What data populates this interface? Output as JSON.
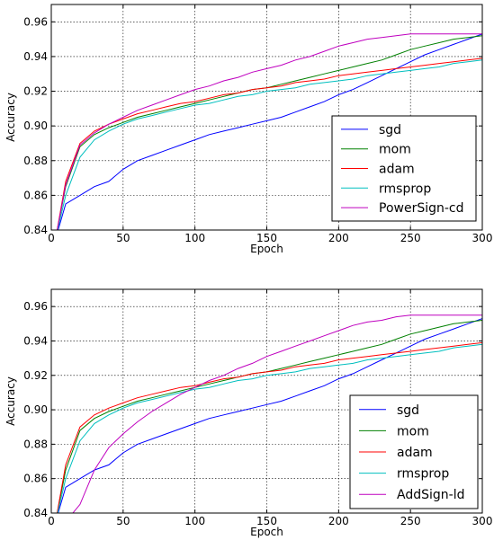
{
  "chart_data": [
    {
      "type": "line",
      "title": "",
      "xlabel": "Epoch",
      "ylabel": "Accuracy",
      "xlim": [
        0,
        300
      ],
      "ylim": [
        0.84,
        0.97
      ],
      "xticks": [
        0,
        50,
        100,
        150,
        200,
        250,
        300
      ],
      "xtick_labels": [
        "0",
        "50",
        "100",
        "150",
        "200",
        "250",
        "300"
      ],
      "yticks": [
        0.84,
        0.86,
        0.88,
        0.9,
        0.92,
        0.94,
        0.96
      ],
      "ytick_labels": [
        "0.84",
        "0.86",
        "0.88",
        "0.90",
        "0.92",
        "0.94",
        "0.96"
      ],
      "grid": true,
      "legend_position": "lower-right",
      "series": [
        {
          "name": "sgd",
          "color": "#0000ff",
          "x": [
            3,
            10,
            20,
            30,
            40,
            50,
            60,
            70,
            80,
            90,
            100,
            110,
            120,
            130,
            140,
            150,
            160,
            170,
            180,
            190,
            200,
            210,
            220,
            230,
            240,
            250,
            260,
            270,
            280,
            290,
            300
          ],
          "y": [
            0.835,
            0.855,
            0.86,
            0.865,
            0.868,
            0.875,
            0.88,
            0.883,
            0.886,
            0.889,
            0.892,
            0.895,
            0.897,
            0.899,
            0.901,
            0.903,
            0.905,
            0.908,
            0.911,
            0.914,
            0.918,
            0.921,
            0.925,
            0.929,
            0.933,
            0.937,
            0.941,
            0.944,
            0.947,
            0.95,
            0.953
          ]
        },
        {
          "name": "mom",
          "color": "#008000",
          "x": [
            3,
            10,
            20,
            30,
            40,
            50,
            60,
            70,
            80,
            90,
            100,
            110,
            120,
            130,
            140,
            150,
            160,
            170,
            180,
            190,
            200,
            210,
            220,
            230,
            240,
            250,
            260,
            270,
            280,
            290,
            300
          ],
          "y": [
            0.835,
            0.865,
            0.888,
            0.895,
            0.899,
            0.902,
            0.905,
            0.907,
            0.909,
            0.911,
            0.913,
            0.915,
            0.917,
            0.919,
            0.921,
            0.922,
            0.924,
            0.926,
            0.928,
            0.93,
            0.932,
            0.934,
            0.936,
            0.938,
            0.941,
            0.944,
            0.946,
            0.948,
            0.95,
            0.951,
            0.952
          ]
        },
        {
          "name": "adam",
          "color": "#ff0000",
          "x": [
            3,
            10,
            20,
            30,
            40,
            50,
            60,
            70,
            80,
            90,
            100,
            110,
            120,
            130,
            140,
            150,
            160,
            170,
            180,
            190,
            200,
            210,
            220,
            230,
            240,
            250,
            260,
            270,
            280,
            290,
            300
          ],
          "y": [
            0.835,
            0.868,
            0.89,
            0.897,
            0.901,
            0.904,
            0.907,
            0.909,
            0.911,
            0.913,
            0.914,
            0.916,
            0.918,
            0.919,
            0.921,
            0.922,
            0.923,
            0.925,
            0.926,
            0.927,
            0.929,
            0.93,
            0.931,
            0.932,
            0.933,
            0.934,
            0.935,
            0.936,
            0.937,
            0.938,
            0.939
          ]
        },
        {
          "name": "rmsprop",
          "color": "#00bfbf",
          "x": [
            3,
            10,
            20,
            30,
            40,
            50,
            60,
            70,
            80,
            90,
            100,
            110,
            120,
            130,
            140,
            150,
            160,
            170,
            180,
            190,
            200,
            210,
            220,
            230,
            240,
            250,
            260,
            270,
            280,
            290,
            300
          ],
          "y": [
            0.835,
            0.86,
            0.882,
            0.892,
            0.897,
            0.901,
            0.904,
            0.906,
            0.908,
            0.91,
            0.912,
            0.913,
            0.915,
            0.917,
            0.918,
            0.92,
            0.921,
            0.922,
            0.924,
            0.925,
            0.926,
            0.927,
            0.929,
            0.93,
            0.931,
            0.932,
            0.933,
            0.934,
            0.936,
            0.937,
            0.938
          ]
        },
        {
          "name": "PowerSign-cd",
          "color": "#bf00bf",
          "x": [
            3,
            10,
            20,
            30,
            40,
            50,
            60,
            70,
            80,
            90,
            100,
            110,
            120,
            130,
            140,
            150,
            160,
            170,
            180,
            190,
            200,
            210,
            220,
            230,
            240,
            250,
            260,
            270,
            280,
            290,
            300
          ],
          "y": [
            0.835,
            0.866,
            0.889,
            0.896,
            0.901,
            0.905,
            0.909,
            0.912,
            0.915,
            0.918,
            0.921,
            0.923,
            0.926,
            0.928,
            0.931,
            0.933,
            0.935,
            0.938,
            0.94,
            0.943,
            0.946,
            0.948,
            0.95,
            0.951,
            0.952,
            0.953,
            0.953,
            0.953,
            0.953,
            0.953,
            0.953
          ]
        }
      ]
    },
    {
      "type": "line",
      "title": "",
      "xlabel": "Epoch",
      "ylabel": "Accuracy",
      "xlim": [
        0,
        300
      ],
      "ylim": [
        0.84,
        0.97
      ],
      "xticks": [
        0,
        50,
        100,
        150,
        200,
        250,
        300
      ],
      "xtick_labels": [
        "0",
        "50",
        "100",
        "150",
        "200",
        "250",
        "300"
      ],
      "yticks": [
        0.84,
        0.86,
        0.88,
        0.9,
        0.92,
        0.94,
        0.96
      ],
      "ytick_labels": [
        "0.84",
        "0.86",
        "0.88",
        "0.90",
        "0.92",
        "0.94",
        "0.96"
      ],
      "grid": true,
      "legend_position": "lower-right",
      "series": [
        {
          "name": "sgd",
          "color": "#0000ff",
          "x": [
            3,
            10,
            20,
            30,
            40,
            50,
            60,
            70,
            80,
            90,
            100,
            110,
            120,
            130,
            140,
            150,
            160,
            170,
            180,
            190,
            200,
            210,
            220,
            230,
            240,
            250,
            260,
            270,
            280,
            290,
            300
          ],
          "y": [
            0.835,
            0.855,
            0.86,
            0.865,
            0.868,
            0.875,
            0.88,
            0.883,
            0.886,
            0.889,
            0.892,
            0.895,
            0.897,
            0.899,
            0.901,
            0.903,
            0.905,
            0.908,
            0.911,
            0.914,
            0.918,
            0.921,
            0.925,
            0.929,
            0.933,
            0.937,
            0.941,
            0.944,
            0.947,
            0.95,
            0.953
          ]
        },
        {
          "name": "mom",
          "color": "#008000",
          "x": [
            3,
            10,
            20,
            30,
            40,
            50,
            60,
            70,
            80,
            90,
            100,
            110,
            120,
            130,
            140,
            150,
            160,
            170,
            180,
            190,
            200,
            210,
            220,
            230,
            240,
            250,
            260,
            270,
            280,
            290,
            300
          ],
          "y": [
            0.835,
            0.865,
            0.888,
            0.895,
            0.899,
            0.902,
            0.905,
            0.907,
            0.909,
            0.911,
            0.913,
            0.915,
            0.917,
            0.919,
            0.921,
            0.922,
            0.924,
            0.926,
            0.928,
            0.93,
            0.932,
            0.934,
            0.936,
            0.938,
            0.941,
            0.944,
            0.946,
            0.948,
            0.95,
            0.951,
            0.952
          ]
        },
        {
          "name": "adam",
          "color": "#ff0000",
          "x": [
            3,
            10,
            20,
            30,
            40,
            50,
            60,
            70,
            80,
            90,
            100,
            110,
            120,
            130,
            140,
            150,
            160,
            170,
            180,
            190,
            200,
            210,
            220,
            230,
            240,
            250,
            260,
            270,
            280,
            290,
            300
          ],
          "y": [
            0.835,
            0.868,
            0.89,
            0.897,
            0.901,
            0.904,
            0.907,
            0.909,
            0.911,
            0.913,
            0.914,
            0.916,
            0.918,
            0.919,
            0.921,
            0.922,
            0.923,
            0.925,
            0.926,
            0.927,
            0.929,
            0.93,
            0.931,
            0.932,
            0.933,
            0.934,
            0.935,
            0.936,
            0.937,
            0.938,
            0.939
          ]
        },
        {
          "name": "rmsprop",
          "color": "#00bfbf",
          "x": [
            3,
            10,
            20,
            30,
            40,
            50,
            60,
            70,
            80,
            90,
            100,
            110,
            120,
            130,
            140,
            150,
            160,
            170,
            180,
            190,
            200,
            210,
            220,
            230,
            240,
            250,
            260,
            270,
            280,
            290,
            300
          ],
          "y": [
            0.835,
            0.86,
            0.882,
            0.892,
            0.897,
            0.901,
            0.904,
            0.906,
            0.908,
            0.91,
            0.912,
            0.913,
            0.915,
            0.917,
            0.918,
            0.92,
            0.921,
            0.922,
            0.924,
            0.925,
            0.926,
            0.927,
            0.929,
            0.93,
            0.931,
            0.932,
            0.933,
            0.934,
            0.936,
            0.937,
            0.938
          ]
        },
        {
          "name": "AddSign-ld",
          "color": "#bf00bf",
          "x": [
            3,
            10,
            20,
            30,
            40,
            50,
            60,
            70,
            80,
            90,
            100,
            110,
            120,
            130,
            140,
            150,
            160,
            170,
            180,
            190,
            200,
            210,
            220,
            230,
            240,
            250,
            260,
            270,
            280,
            290,
            300
          ],
          "y": [
            0.83,
            0.835,
            0.845,
            0.865,
            0.878,
            0.886,
            0.893,
            0.899,
            0.904,
            0.909,
            0.913,
            0.917,
            0.92,
            0.924,
            0.927,
            0.931,
            0.934,
            0.937,
            0.94,
            0.943,
            0.946,
            0.949,
            0.951,
            0.952,
            0.954,
            0.955,
            0.955,
            0.955,
            0.955,
            0.955,
            0.955
          ]
        }
      ]
    }
  ]
}
